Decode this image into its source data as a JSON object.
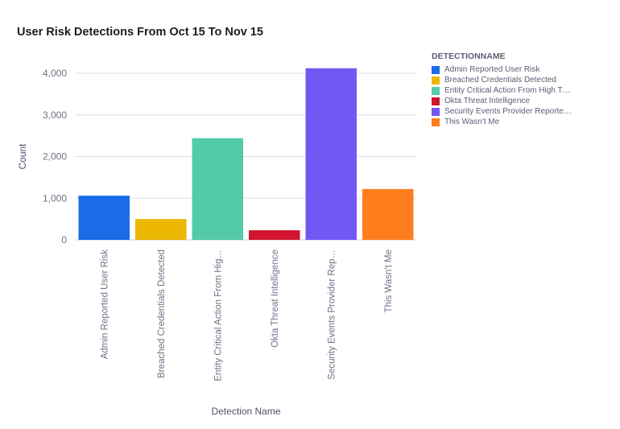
{
  "chart_data": {
    "type": "bar",
    "title": "User Risk Detections From Oct 15 To Nov 15",
    "xlabel": "Detection Name",
    "ylabel": "Count",
    "ylim": [
      0,
      4000
    ],
    "yticks": [
      "0",
      "1,000",
      "2,000",
      "3,000",
      "4,000"
    ],
    "ytick_values": [
      0,
      1000,
      2000,
      3000,
      4000
    ],
    "grid": true,
    "legend_placement": "right",
    "legend_title": "DETECTIONNAME",
    "categories": [
      "Admin Reported User Risk",
      "Breached Credentials Detected",
      "Entity Critical Action From High T…",
      "Okta Threat Intelligence",
      "Security Events Provider Reporte…",
      "This Wasn't Me"
    ],
    "tick_labels": [
      "Admin Reported User Risk",
      "Breached Credentials Detected",
      "Entity Critical Action From Hig…",
      "Okta Threat Intelligence",
      "Security Events Provider Rep…",
      "This Wasn't Me"
    ],
    "values": [
      1060,
      500,
      2440,
      230,
      4120,
      1220
    ],
    "colors": [
      "#1a6ce6",
      "#ebb700",
      "#53cba6",
      "#d2142f",
      "#7357f5",
      "#ff7d1c"
    ]
  }
}
